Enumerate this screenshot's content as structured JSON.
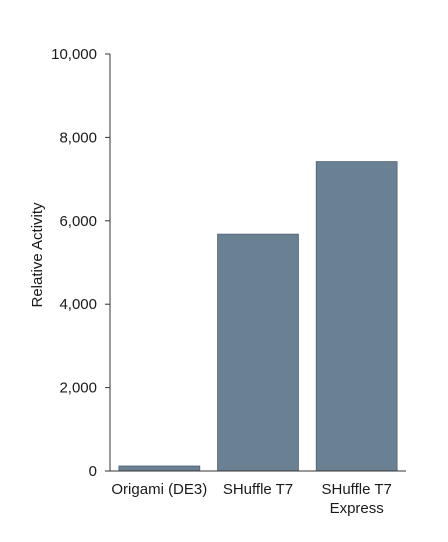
{
  "chart_data": {
    "type": "bar",
    "categories": [
      {
        "lines": [
          "Origami (DE3)"
        ]
      },
      {
        "lines": [
          "SHuffle T7"
        ]
      },
      {
        "lines": [
          "SHuffle T7",
          "Express"
        ]
      }
    ],
    "values": [
      120,
      5680,
      7420
    ],
    "ylabel": "Relative Activity",
    "ylim": [
      0,
      10000
    ],
    "yticks": [
      0,
      2000,
      4000,
      6000,
      8000,
      10000
    ],
    "ytick_labels": [
      "0",
      "2,000",
      "4,000",
      "6,000",
      "8,000",
      "10,000"
    ],
    "grid": false,
    "colors": {
      "bar": "#6a8194",
      "bar_edge": "#4f6373",
      "axis": "#333333"
    }
  }
}
